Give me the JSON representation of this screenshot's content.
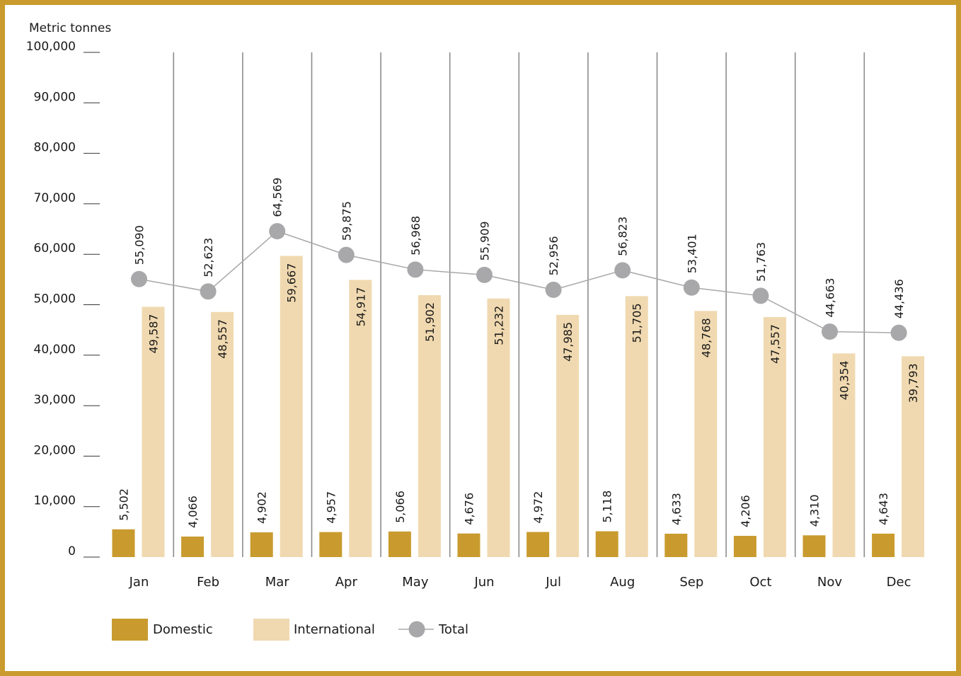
{
  "chart_data": {
    "type": "bar",
    "ylabel": "Metric tonnes",
    "ylim": [
      0,
      100000
    ],
    "yticks": [
      0,
      10000,
      20000,
      30000,
      40000,
      50000,
      60000,
      70000,
      80000,
      90000,
      100000
    ],
    "ytick_labels": [
      "0",
      "10,000",
      "20,000",
      "30,000",
      "40,000",
      "50,000",
      "60,000",
      "70,000",
      "80,000",
      "90,000",
      "100,000"
    ],
    "categories": [
      "Jan",
      "Feb",
      "Mar",
      "Apr",
      "May",
      "Jun",
      "Jul",
      "Aug",
      "Sep",
      "Oct",
      "Nov",
      "Dec"
    ],
    "series": [
      {
        "name": "Domestic",
        "kind": "bar",
        "color": "#C99B2E",
        "values": [
          5502,
          4066,
          4902,
          4957,
          5066,
          4676,
          4972,
          5118,
          4633,
          4206,
          4310,
          4643
        ],
        "labels": [
          "5,502",
          "4,066",
          "4,902",
          "4,957",
          "5,066",
          "4,676",
          "4,972",
          "5,118",
          "4,633",
          "4,206",
          "4,310",
          "4,643"
        ]
      },
      {
        "name": "International",
        "kind": "bar",
        "color": "#F0D9B0",
        "values": [
          49587,
          48557,
          59667,
          54917,
          51902,
          51232,
          47985,
          51705,
          48768,
          47557,
          40354,
          39793
        ],
        "labels": [
          "49,587",
          "48,557",
          "59,667",
          "54,917",
          "51,902",
          "51,232",
          "47,985",
          "51,705",
          "48,768",
          "47,557",
          "40,354",
          "39,793"
        ]
      },
      {
        "name": "Total",
        "kind": "line",
        "color": "#A8A8AA",
        "values": [
          55090,
          52623,
          64569,
          59875,
          56968,
          55909,
          52956,
          56823,
          53401,
          51763,
          44663,
          44436
        ],
        "labels": [
          "55,090",
          "52,623",
          "64,569",
          "59,875",
          "56,968",
          "55,909",
          "52,956",
          "56,823",
          "53,401",
          "51,763",
          "44,663",
          "44,436"
        ]
      }
    ],
    "legend": {
      "position": "bottom-left",
      "entries": [
        "Domestic",
        "International",
        "Total"
      ]
    },
    "grid": {
      "vertical_separators": true,
      "horizontal": false
    },
    "frame_color": "#C99B2E"
  }
}
